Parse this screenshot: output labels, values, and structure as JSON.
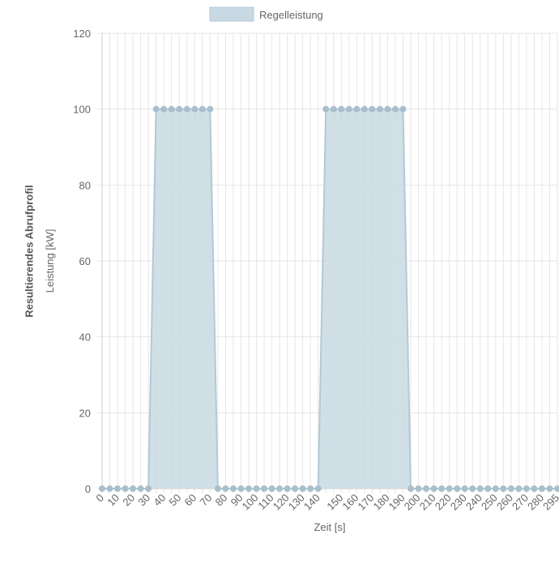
{
  "page_title": "Resultierendes Abrufprofil",
  "chart_data": {
    "type": "area",
    "title": "",
    "xlabel": "Zeit [s]",
    "ylabel": "Leistung [kW]",
    "ylim": [
      0,
      120
    ],
    "yticks": [
      0,
      20,
      40,
      60,
      80,
      100,
      120
    ],
    "grid": true,
    "legend_position": "top",
    "x": [
      "0",
      "10",
      "20",
      "30",
      "40",
      "50",
      "60",
      "70",
      "80",
      "90",
      "100",
      "110",
      "120",
      "130",
      "140",
      "150",
      "160",
      "170",
      "180",
      "190",
      "200",
      "210",
      "220",
      "230",
      "240",
      "250",
      "260",
      "270",
      "280",
      "295"
    ],
    "x_tick_labels": [
      "0",
      "10",
      "20",
      "30",
      "40",
      "50",
      "60",
      "70",
      "80",
      "90",
      "100",
      "110",
      "120",
      "130",
      "140",
      "150",
      "160",
      "170",
      "180",
      "190",
      "200",
      "210",
      "220",
      "230",
      "240",
      "250",
      "260",
      "270",
      "280",
      "295"
    ],
    "series": [
      {
        "name": "Regelleistung",
        "fill_color": "#c9d9e3",
        "line_color": "#b2c9d6",
        "point_color": "#a9bfcc",
        "x": [
          0,
          5,
          10,
          15,
          20,
          25,
          30,
          35,
          40,
          45,
          50,
          55,
          60,
          65,
          70,
          75,
          80,
          85,
          90,
          95,
          100,
          105,
          110,
          115,
          120,
          125,
          130,
          135,
          140,
          145,
          150,
          155,
          160,
          165,
          170,
          175,
          180,
          185,
          190,
          195,
          200,
          205,
          210,
          215,
          220,
          225,
          230,
          235,
          240,
          245,
          250,
          255,
          260,
          265,
          270,
          275,
          280,
          285,
          290,
          295
        ],
        "values": [
          0,
          0,
          0,
          0,
          0,
          0,
          0,
          100,
          100,
          100,
          100,
          100,
          100,
          100,
          100,
          0,
          0,
          0,
          0,
          0,
          0,
          0,
          0,
          0,
          0,
          0,
          0,
          0,
          0,
          100,
          100,
          100,
          100,
          100,
          100,
          100,
          100,
          100,
          100,
          100,
          0,
          0,
          0,
          0,
          0,
          0,
          0,
          0,
          0,
          0,
          0,
          0,
          0,
          0,
          0,
          0,
          0,
          0,
          0,
          0
        ]
      }
    ]
  }
}
